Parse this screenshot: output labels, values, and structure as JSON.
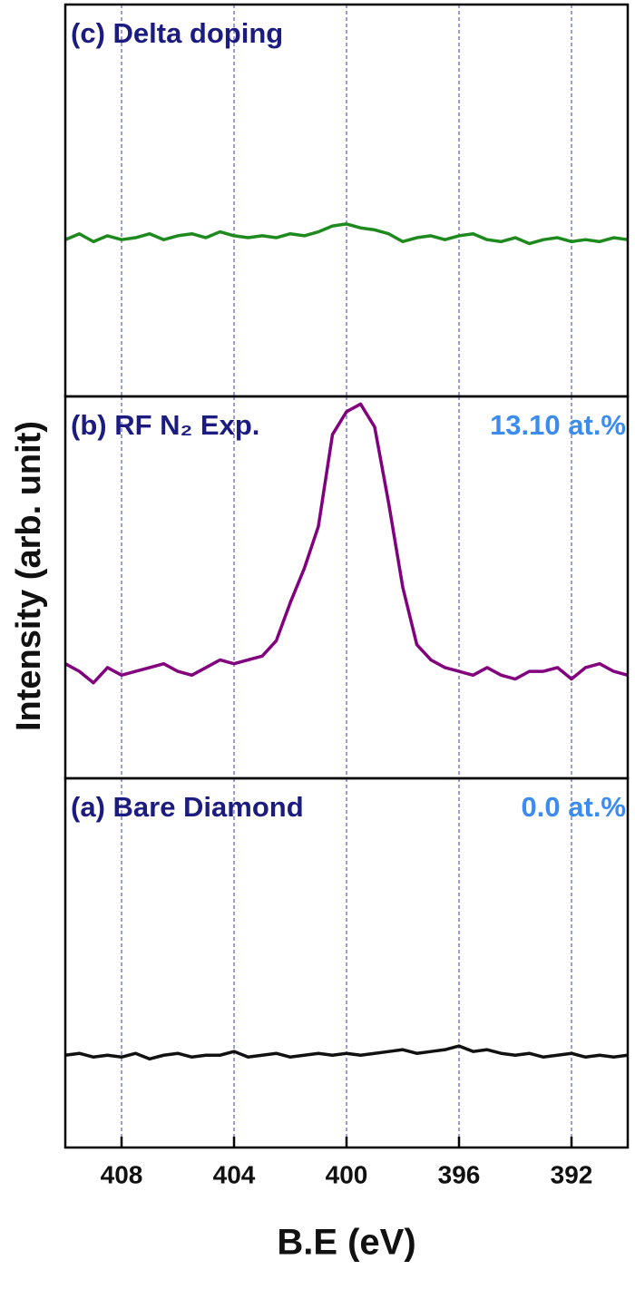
{
  "chart_data": [
    {
      "type": "line",
      "title": "(c) Delta doping",
      "x": [
        410,
        409.5,
        409,
        408.5,
        408,
        407.5,
        407,
        406.5,
        406,
        405.5,
        405,
        404.5,
        404,
        403.5,
        403,
        402.5,
        402,
        401.5,
        401,
        400.5,
        400,
        399.5,
        399,
        398.5,
        398,
        397.5,
        397,
        396.5,
        396,
        395.5,
        395,
        394.5,
        394,
        393.5,
        393,
        392.5,
        392,
        391.5,
        391,
        390.5,
        390
      ],
      "series": [
        {
          "name": "Delta doping",
          "color": "#1e8a1e",
          "values": [
            40,
            41.5,
            39.5,
            41,
            40,
            40.5,
            41.5,
            40,
            41,
            41.5,
            40.5,
            42,
            41,
            40.5,
            41,
            40.5,
            41.5,
            41,
            42,
            43.5,
            44,
            43,
            42.5,
            41.5,
            39.5,
            40.5,
            41,
            40,
            41,
            41.5,
            40,
            39.5,
            40.5,
            39,
            40,
            40.5,
            39.5,
            40,
            39.5,
            40.5,
            40
          ]
        }
      ],
      "xlim": [
        410,
        390
      ],
      "ylim": [
        0,
        100
      ],
      "grid": true
    },
    {
      "type": "line",
      "title": "(b) RF N₂ Exp.",
      "annotation": "13.10 at.%",
      "ylabel": "Intensity (arb. unit)",
      "x": [
        410,
        409.5,
        409,
        408.5,
        408,
        407.5,
        407,
        406.5,
        406,
        405.5,
        405,
        404.5,
        404,
        403.5,
        403,
        402.5,
        402,
        401.5,
        401,
        400.5,
        400,
        399.5,
        399,
        398.5,
        398,
        397.5,
        397,
        396.5,
        396,
        395.5,
        395,
        394.5,
        394,
        393.5,
        393,
        392.5,
        392,
        391.5,
        391,
        390.5,
        390
      ],
      "series": [
        {
          "name": "RF N2 Exp.",
          "color": "#82007e",
          "values": [
            30,
            28,
            25,
            29,
            27,
            28,
            29,
            30,
            28,
            27,
            29,
            31,
            30,
            31,
            32,
            36,
            46,
            55,
            66,
            90,
            96,
            98,
            92,
            72,
            50,
            35,
            31,
            29,
            28,
            27,
            29,
            27,
            26,
            28,
            28,
            29,
            26,
            29,
            30,
            28,
            27
          ]
        }
      ],
      "xlim": [
        410,
        390
      ],
      "ylim": [
        0,
        100
      ],
      "grid": true
    },
    {
      "type": "line",
      "title": "(a) Bare Diamond",
      "annotation": "0.0 at.%",
      "xlabel": "B.E (eV)",
      "x": [
        410,
        409.5,
        409,
        408.5,
        408,
        407.5,
        407,
        406.5,
        406,
        405.5,
        405,
        404.5,
        404,
        403.5,
        403,
        402.5,
        402,
        401.5,
        401,
        400.5,
        400,
        399.5,
        399,
        398.5,
        398,
        397.5,
        397,
        396.5,
        396,
        395.5,
        395,
        394.5,
        394,
        393.5,
        393,
        392.5,
        392,
        391.5,
        391,
        390.5,
        390
      ],
      "series": [
        {
          "name": "Bare Diamond",
          "color": "#111111",
          "values": [
            25,
            25.5,
            24.5,
            25,
            24.5,
            25.5,
            24,
            25,
            25.5,
            24.5,
            25,
            25,
            26,
            24.5,
            25,
            25.5,
            24.5,
            25,
            25.5,
            25,
            25.5,
            25,
            25.5,
            26,
            26.5,
            25.5,
            26,
            26.5,
            27.5,
            26,
            26.5,
            25.5,
            25,
            25.5,
            24.5,
            25,
            25.5,
            24.5,
            25,
            24.5,
            25
          ]
        }
      ],
      "xlim": [
        410,
        390
      ],
      "ylim": [
        0,
        100
      ],
      "xticks": [
        408,
        404,
        400,
        396,
        392
      ],
      "grid": true
    }
  ]
}
